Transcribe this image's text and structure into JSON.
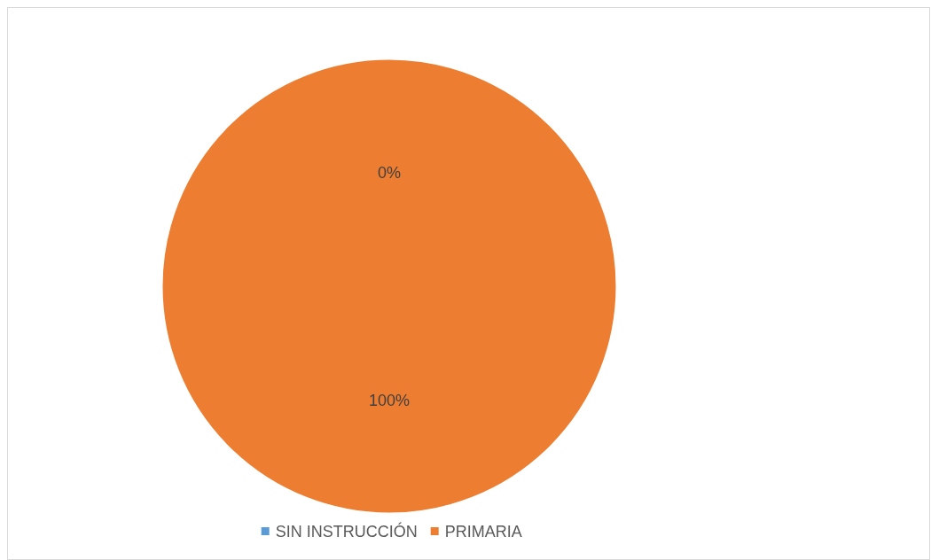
{
  "chart_data": {
    "type": "pie",
    "categories": [
      "SIN INSTRUCCIÓN",
      "PRIMARIA"
    ],
    "values": [
      0,
      100
    ],
    "colors": [
      "#5b9bd5",
      "#ed7d31"
    ],
    "value_labels": [
      "0%",
      "100%"
    ],
    "legend": "bottom"
  }
}
